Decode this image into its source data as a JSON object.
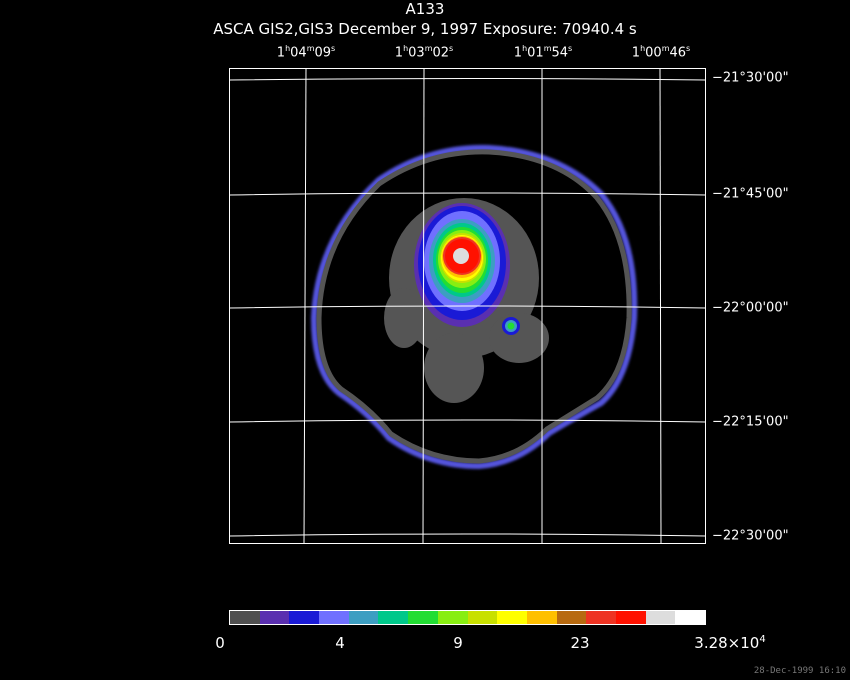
{
  "header": {
    "title": "A133",
    "subtitle": "ASCA GIS2,GIS3 December 9, 1997 Exposure: 70940.4 s"
  },
  "ra_labels": [
    {
      "h": "1",
      "m": "04",
      "s": "09"
    },
    {
      "h": "1",
      "m": "03",
      "s": "02"
    },
    {
      "h": "1",
      "m": "01",
      "s": "54"
    },
    {
      "h": "1",
      "m": "00",
      "s": "46"
    }
  ],
  "dec_labels": [
    "−21°30'00\"",
    "−21°45'00\"",
    "−22°00'00\"",
    "−22°15'00\"",
    "−22°30'00\""
  ],
  "colorbar": {
    "colors": [
      "#4f4f4f",
      "#5a2fb0",
      "#1a1ad6",
      "#7070ff",
      "#3d9ec2",
      "#00c88a",
      "#22dd33",
      "#88ee11",
      "#c8e000",
      "#ffff00",
      "#ffc000",
      "#b86a10",
      "#ee3322",
      "#ff1100",
      "#dddddd",
      "#ffffff"
    ],
    "labels": [
      "0",
      "4",
      "9",
      "23",
      "3.28×10"
    ],
    "exponent": "4"
  },
  "timestamp": "28-Dec-1999 16:10"
}
